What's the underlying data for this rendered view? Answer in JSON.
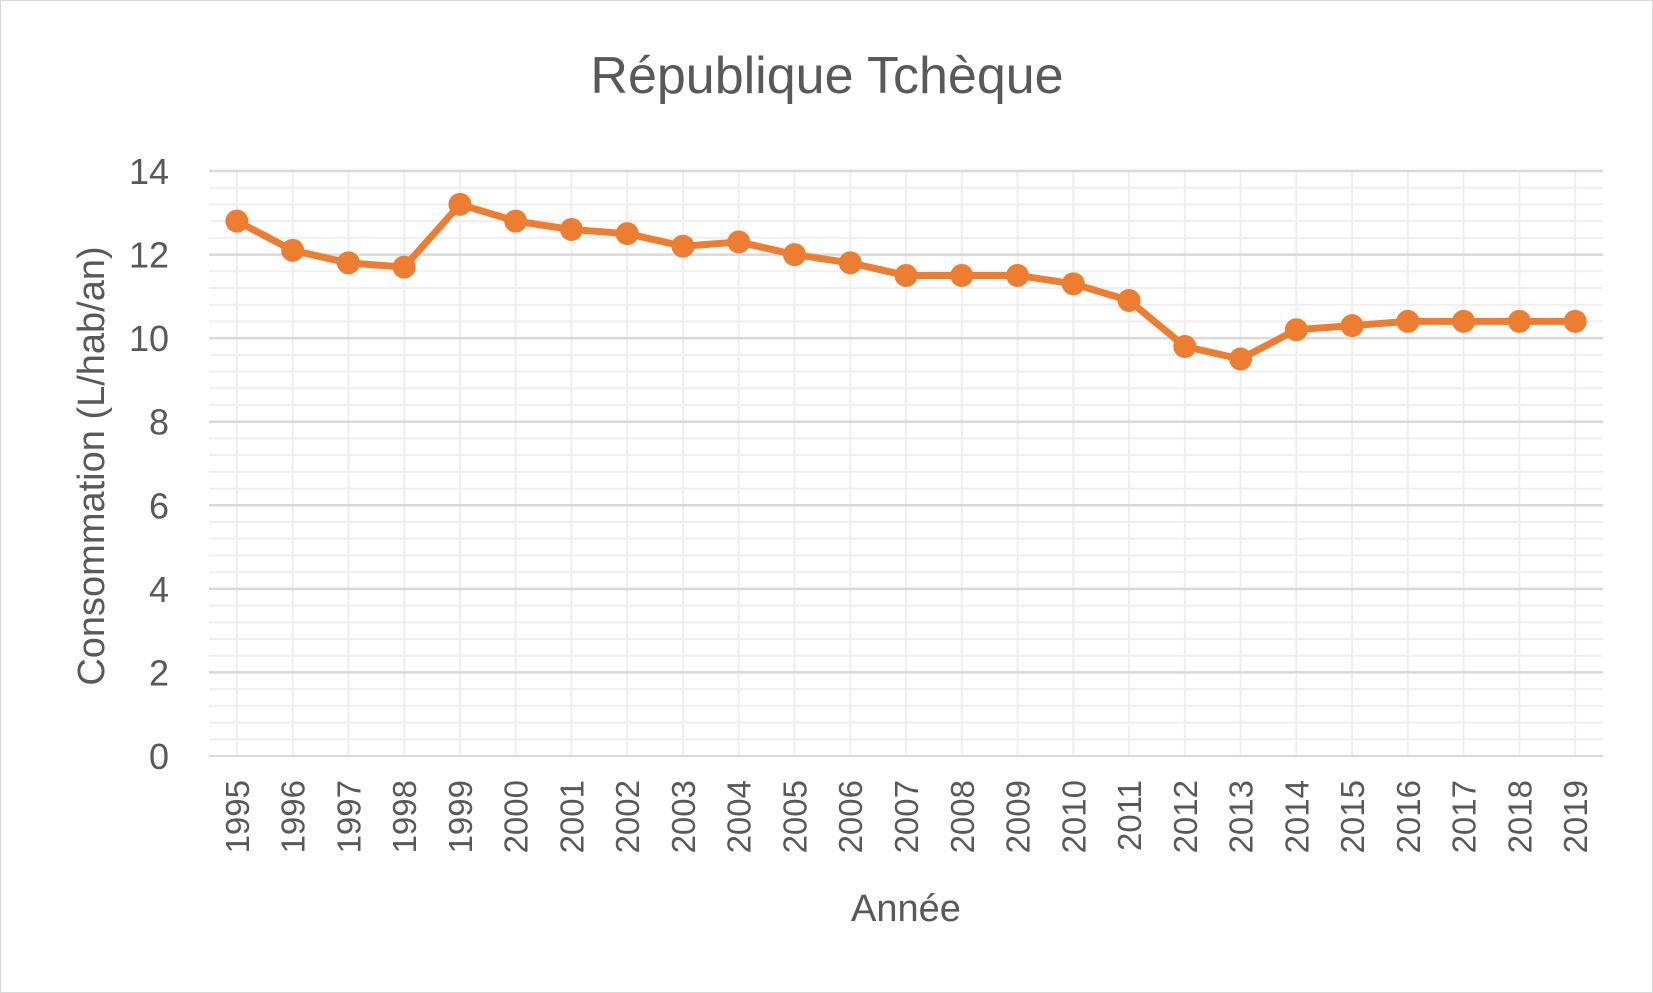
{
  "chart_data": {
    "type": "line",
    "title": "République Tchèque",
    "xlabel": "Année",
    "ylabel": "Consommation (L/hab/an)",
    "ylim": [
      0,
      14
    ],
    "yticks": [
      0,
      2,
      4,
      6,
      8,
      10,
      12,
      14
    ],
    "categories": [
      "1995",
      "1996",
      "1997",
      "1998",
      "1999",
      "2000",
      "2001",
      "2002",
      "2003",
      "2004",
      "2005",
      "2006",
      "2007",
      "2008",
      "2009",
      "2010",
      "2011",
      "2012",
      "2013",
      "2014",
      "2015",
      "2016",
      "2017",
      "2018",
      "2019"
    ],
    "series": [
      {
        "values": [
          12.8,
          12.1,
          11.8,
          11.7,
          13.2,
          12.8,
          12.6,
          12.5,
          12.2,
          12.3,
          12.0,
          11.8,
          11.5,
          11.5,
          11.5,
          11.3,
          10.9,
          9.8,
          9.5,
          10.2,
          10.3,
          10.4,
          10.4,
          10.4,
          10.4
        ],
        "color": "#ed7d31"
      }
    ],
    "grid": true,
    "minor_grid": true,
    "legend": "none"
  }
}
